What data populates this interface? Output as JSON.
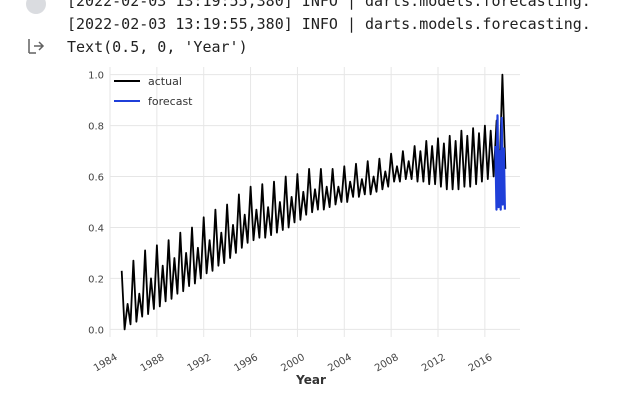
{
  "cell": {
    "log_lines": [
      "[2022-02-03 13:19:55,380] INFO | darts.models.forecasting.",
      "[2022-02-03 13:19:55,380] INFO | darts.models.forecasting."
    ],
    "result_text": "Text(0.5, 0, 'Year')",
    "icons": {
      "run": "run-cell-icon",
      "output": "output-redirect-icon"
    }
  },
  "chart_data": {
    "type": "line",
    "title": "",
    "xlabel": "Year",
    "ylabel": "",
    "xlim": [
      1984,
      2019
    ],
    "ylim": [
      -0.03,
      1.03
    ],
    "xticks": [
      "1984",
      "1988",
      "1992",
      "1996",
      "2000",
      "2004",
      "2008",
      "2012",
      "2016"
    ],
    "yticks": [
      "0.0",
      "0.2",
      "0.4",
      "0.6",
      "0.8",
      "1.0"
    ],
    "grid": true,
    "legend_position": "top-left",
    "series": [
      {
        "name": "actual",
        "color": "#000000",
        "x_start": 1985.0,
        "x_end": 2018.0,
        "lows": [
          0.0,
          0.02,
          0.03,
          0.05,
          0.06,
          0.08,
          0.09,
          0.11,
          0.12,
          0.14,
          0.15,
          0.17,
          0.18,
          0.2,
          0.22,
          0.23,
          0.25,
          0.26,
          0.28,
          0.3,
          0.32,
          0.34,
          0.35,
          0.36,
          0.36,
          0.37,
          0.38,
          0.39,
          0.4,
          0.42,
          0.43,
          0.45,
          0.46,
          0.47,
          0.47,
          0.48,
          0.49,
          0.5,
          0.5,
          0.52,
          0.52,
          0.53,
          0.53,
          0.54,
          0.55,
          0.56,
          0.58,
          0.58,
          0.59,
          0.59,
          0.58,
          0.58,
          0.57,
          0.57,
          0.56,
          0.55,
          0.55,
          0.55,
          0.56,
          0.56,
          0.57,
          0.58,
          0.59,
          0.6,
          0.61,
          0.63
        ],
        "highs": [
          0.23,
          0.1,
          0.27,
          0.14,
          0.31,
          0.2,
          0.33,
          0.25,
          0.35,
          0.28,
          0.38,
          0.3,
          0.4,
          0.32,
          0.44,
          0.35,
          0.47,
          0.38,
          0.49,
          0.41,
          0.53,
          0.45,
          0.56,
          0.47,
          0.57,
          0.48,
          0.58,
          0.5,
          0.6,
          0.52,
          0.61,
          0.54,
          0.63,
          0.55,
          0.63,
          0.56,
          0.63,
          0.56,
          0.64,
          0.58,
          0.65,
          0.59,
          0.66,
          0.6,
          0.67,
          0.62,
          0.69,
          0.64,
          0.7,
          0.66,
          0.72,
          0.7,
          0.74,
          0.72,
          0.75,
          0.73,
          0.76,
          0.74,
          0.78,
          0.76,
          0.79,
          0.77,
          0.8,
          0.78,
          0.82,
          1.0
        ]
      },
      {
        "name": "forecast",
        "color": "#1f3fd9",
        "x_start": 2016.9,
        "x_end": 2017.8,
        "lows": [
          0.47,
          0.48,
          0.47,
          0.49,
          0.47
        ],
        "highs": [
          0.72,
          0.84,
          0.7,
          0.83,
          0.71
        ]
      }
    ]
  }
}
